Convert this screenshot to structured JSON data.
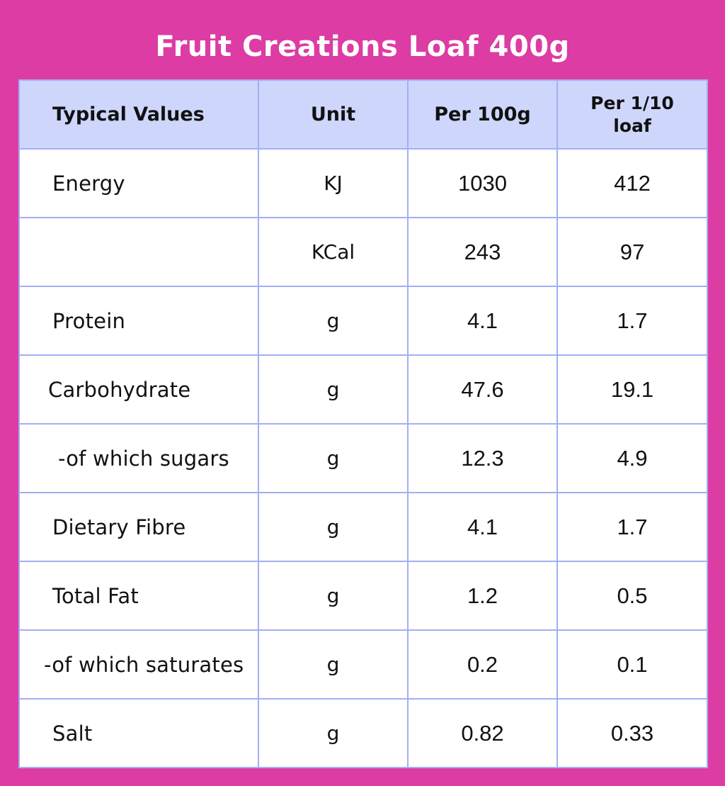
{
  "title": "Fruit Creations Loaf 400g",
  "colors": {
    "background": "#dc3ca3",
    "header_fill": "#cfd6fc",
    "grid_line": "#a3aff2",
    "cell_fill": "#ffffff"
  },
  "table": {
    "headers": {
      "typical_values": "Typical Values",
      "unit": "Unit",
      "per_100g": "Per 100g",
      "per_serving_line1": "Per 1/10",
      "per_serving_line2": "loaf"
    },
    "rows": [
      {
        "label": "Energy",
        "unit": "KJ",
        "per_100g": "1030",
        "per_serving": "412"
      },
      {
        "label": "",
        "unit": "KCal",
        "per_100g": "243",
        "per_serving": "97"
      },
      {
        "label": "Protein",
        "unit": "g",
        "per_100g": "4.1",
        "per_serving": "1.7"
      },
      {
        "label": "Carbohydrate",
        "unit": "g",
        "per_100g": "47.6",
        "per_serving": "19.1"
      },
      {
        "label": "-of which sugars",
        "unit": "g",
        "per_100g": "12.3",
        "per_serving": "4.9"
      },
      {
        "label": "Dietary Fibre",
        "unit": "g",
        "per_100g": "4.1",
        "per_serving": "1.7"
      },
      {
        "label": "Total Fat",
        "unit": "g",
        "per_100g": "1.2",
        "per_serving": "0.5"
      },
      {
        "label": "-of which saturates",
        "unit": "g",
        "per_100g": "0.2",
        "per_serving": "0.1"
      },
      {
        "label": "Salt",
        "unit": "g",
        "per_100g": "0.82",
        "per_serving": "0.33"
      }
    ]
  }
}
